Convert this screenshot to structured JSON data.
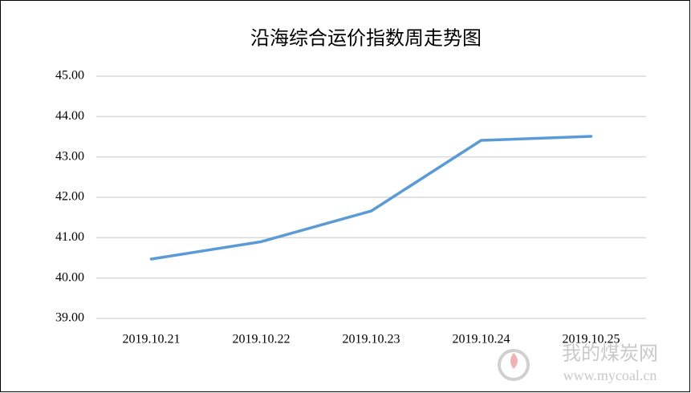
{
  "chart_data": {
    "type": "line",
    "title": "沿海综合运价指数周走势图",
    "categories": [
      "2019.10.21",
      "2019.10.22",
      "2019.10.23",
      "2019.10.24",
      "2019.10.25"
    ],
    "values": [
      40.47,
      40.9,
      41.66,
      43.41,
      43.51
    ],
    "color": "#5b9bd5",
    "ylim": [
      39,
      45
    ],
    "yticks": [
      {
        "value": 39,
        "label": "39.00"
      },
      {
        "value": 40,
        "label": "40.00"
      },
      {
        "value": 41,
        "label": "41.00"
      },
      {
        "value": 42,
        "label": "42.00"
      },
      {
        "value": 43,
        "label": "43.00"
      },
      {
        "value": 44,
        "label": "44.00"
      },
      {
        "value": 45,
        "label": "45.00"
      }
    ],
    "grid": true,
    "watermark": {
      "name": "我的煤炭网",
      "url": "www.mycoal.cn"
    }
  }
}
